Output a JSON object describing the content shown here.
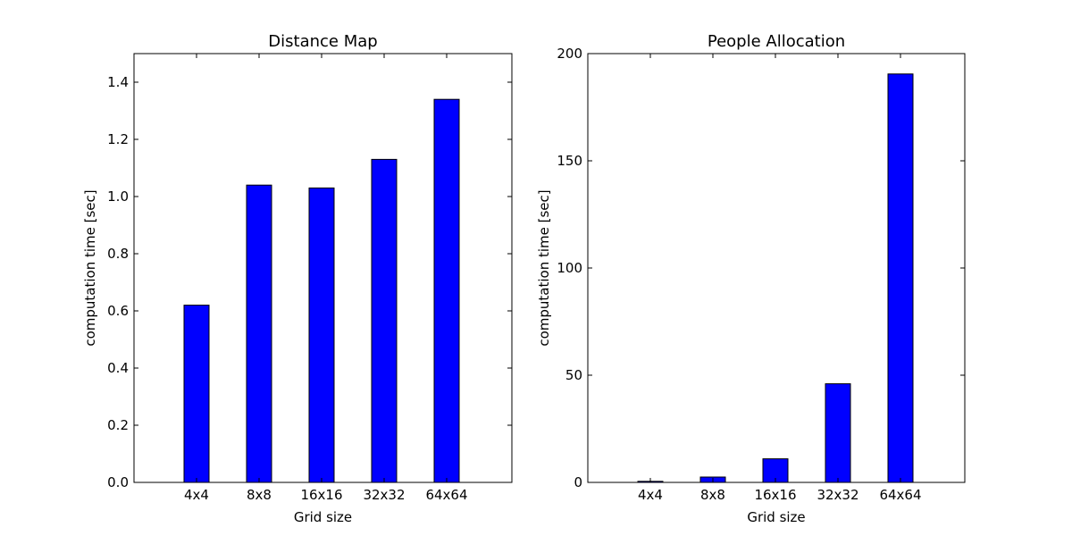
{
  "chart_data": [
    {
      "type": "bar",
      "title": "Distance Map",
      "xlabel": "Grid size",
      "ylabel": "computation time [sec]",
      "categories": [
        "4x4",
        "8x8",
        "16x16",
        "32x32",
        "64x64"
      ],
      "values": [
        0.62,
        1.04,
        1.03,
        1.13,
        1.34
      ],
      "ylim": [
        0,
        1.5
      ],
      "yticks": [
        0.0,
        0.2,
        0.4,
        0.6,
        0.8,
        1.0,
        1.2,
        1.4
      ],
      "ytick_labels": [
        "0.0",
        "0.2",
        "0.4",
        "0.6",
        "0.8",
        "1.0",
        "1.2",
        "1.4"
      ],
      "bar_color": "#0000ff",
      "grid": false
    },
    {
      "type": "bar",
      "title": "People Allocation",
      "xlabel": "Grid size",
      "ylabel": "computation time [sec]",
      "categories": [
        "4x4",
        "8x8",
        "16x16",
        "32x32",
        "64x64"
      ],
      "values": [
        0.5,
        2.5,
        11,
        46,
        190.5
      ],
      "ylim": [
        0,
        200
      ],
      "yticks": [
        0,
        50,
        100,
        150,
        200
      ],
      "ytick_labels": [
        "0",
        "50",
        "100",
        "150",
        "200"
      ],
      "bar_color": "#0000ff",
      "grid": false
    }
  ]
}
